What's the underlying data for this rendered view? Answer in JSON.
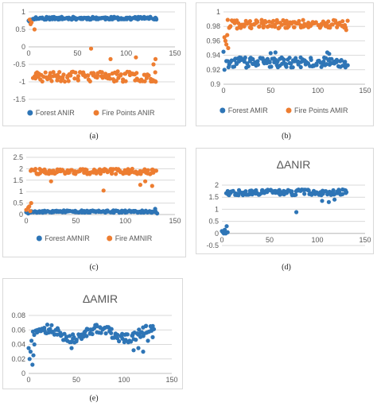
{
  "colors": {
    "blue": "#2e75b6",
    "orange": "#ed7d31",
    "grid": "#d9d9d9",
    "axis": "#bfbfbf"
  },
  "chart_data": [
    {
      "id": "a",
      "caption": "(a)",
      "type": "scatter",
      "title": "",
      "xlim": [
        0,
        150
      ],
      "xticks": [
        0,
        50,
        100,
        150
      ],
      "ylim": [
        -1.5,
        1
      ],
      "yticks": [
        -1.5,
        -1,
        -0.5,
        0,
        0.5,
        1
      ],
      "ytick_labels": [
        "-1.5",
        "-1",
        "-0.5",
        "0",
        "0.5",
        "1"
      ],
      "x_axis_at": 0,
      "grid": true,
      "legend": "bottom",
      "series": [
        {
          "name": "Forest ANIR",
          "color": "blue",
          "gen": "band",
          "center": 0.82,
          "amp": 0.04,
          "n": 130,
          "seed": 11,
          "extra": [
            [
              0,
              0.75
            ],
            [
              1,
              0.72
            ],
            [
              2,
              0.78
            ]
          ]
        },
        {
          "name": "Fire Points ANIR",
          "color": "orange",
          "gen": "band",
          "center": -0.85,
          "amp": 0.15,
          "n": 120,
          "seed": 23,
          "extra": [
            [
              1,
              0.78
            ],
            [
              2,
              0.65
            ],
            [
              3,
              0.7
            ],
            [
              6,
              0.5
            ],
            [
              7,
              -0.9
            ],
            [
              64,
              -0.05
            ],
            [
              84,
              -0.35
            ],
            [
              110,
              -0.3
            ],
            [
              130,
              -0.35
            ],
            [
              128,
              -0.5
            ]
          ]
        }
      ]
    },
    {
      "id": "b",
      "caption": "(b)",
      "type": "scatter",
      "title": "",
      "xlim": [
        0,
        150
      ],
      "xticks": [
        0,
        50,
        100,
        150
      ],
      "ylim": [
        0.9,
        1
      ],
      "yticks": [
        0.9,
        0.92,
        0.94,
        0.96,
        0.98,
        1
      ],
      "ytick_labels": [
        "0.9",
        "0.92",
        "0.94",
        "0.96",
        "0.98",
        "1"
      ],
      "x_axis_at": 0.9,
      "grid": true,
      "legend": "bottom",
      "series": [
        {
          "name": "Forest AMIR",
          "color": "blue",
          "gen": "band",
          "center": 0.93,
          "amp": 0.007,
          "n": 130,
          "seed": 37,
          "extra": [
            [
              0,
              0.945
            ],
            [
              1,
              0.92
            ],
            [
              3,
              0.932
            ],
            [
              50,
              0.943
            ],
            [
              55,
              0.944
            ],
            [
              110,
              0.944
            ],
            [
              112,
              0.942
            ]
          ]
        },
        {
          "name": "Fire Points AMIR",
          "color": "orange",
          "gen": "band",
          "center": 0.983,
          "amp": 0.006,
          "n": 125,
          "seed": 41,
          "extra": [
            [
              1,
              0.965
            ],
            [
              2,
              0.96
            ],
            [
              3,
              0.955
            ],
            [
              4,
              0.968
            ],
            [
              5,
              0.95
            ],
            [
              6,
              0.978
            ],
            [
              130,
              0.975
            ]
          ]
        }
      ]
    },
    {
      "id": "c",
      "caption": "(c)",
      "type": "scatter",
      "title": "",
      "xlim": [
        0,
        150
      ],
      "xticks": [
        0,
        50,
        100,
        150
      ],
      "ylim": [
        0,
        2.5
      ],
      "yticks": [
        0,
        0.5,
        1,
        1.5,
        2,
        2.5
      ],
      "ytick_labels": [
        "0",
        "0.5",
        "1",
        "1.5",
        "2",
        "2.5"
      ],
      "x_axis_at": 0,
      "grid": true,
      "legend": "bottom",
      "series": [
        {
          "name": "Forest AMNIR",
          "color": "blue",
          "gen": "band",
          "center": 0.13,
          "amp": 0.05,
          "n": 130,
          "seed": 53,
          "extra": [
            [
              0,
              0.1
            ],
            [
              2,
              0.05
            ],
            [
              130,
              0.25
            ],
            [
              132,
              0.05
            ]
          ]
        },
        {
          "name": "Fire AMNIR",
          "color": "orange",
          "gen": "band",
          "center": 1.88,
          "amp": 0.12,
          "n": 120,
          "seed": 59,
          "extra": [
            [
              0,
              0.2
            ],
            [
              2,
              0.3
            ],
            [
              3,
              0.35
            ],
            [
              5,
              0.5
            ],
            [
              4,
              0.15
            ],
            [
              25,
              1.45
            ],
            [
              78,
              1.05
            ],
            [
              115,
              1.3
            ],
            [
              120,
              1.45
            ],
            [
              127,
              1.25
            ]
          ]
        }
      ]
    },
    {
      "id": "d",
      "caption": "(d)",
      "type": "scatter",
      "title": "ΔANIR",
      "xlim": [
        0,
        150
      ],
      "xticks": [
        0,
        50,
        100,
        150
      ],
      "ylim": [
        -0.5,
        2
      ],
      "yticks": [
        -0.5,
        0,
        0.5,
        1,
        1.5,
        2
      ],
      "ytick_labels": [
        "-0.5",
        "0",
        "0.5",
        "1",
        "1.5",
        "2"
      ],
      "x_axis_at": 0,
      "grid": true,
      "legend": "none",
      "series": [
        {
          "name": "",
          "color": "blue",
          "gen": "band",
          "center": 1.7,
          "amp": 0.12,
          "n": 125,
          "seed": 67,
          "extra": [
            [
              0,
              0.1
            ],
            [
              1,
              0.05
            ],
            [
              2,
              0.0
            ],
            [
              3,
              0.15
            ],
            [
              4,
              0.0
            ],
            [
              5,
              0.3
            ],
            [
              6,
              0.05
            ],
            [
              7,
              1.6
            ],
            [
              78,
              0.88
            ],
            [
              105,
              1.35
            ],
            [
              112,
              1.3
            ],
            [
              118,
              1.4
            ]
          ]
        }
      ]
    },
    {
      "id": "e",
      "caption": "(e)",
      "type": "scatter",
      "title": "ΔAMIR",
      "xlim": [
        0,
        150
      ],
      "xticks": [
        0,
        50,
        100,
        150
      ],
      "ylim": [
        0,
        0.08
      ],
      "yticks": [
        0,
        0.02,
        0.04,
        0.06,
        0.08
      ],
      "ytick_labels": [
        "0",
        "0.02",
        "0.04",
        "0.06",
        "0.08"
      ],
      "x_axis_at": 0,
      "grid": true,
      "legend": "none",
      "series": [
        {
          "name": "",
          "color": "blue",
          "gen": "wave",
          "center": 0.055,
          "amp": 0.008,
          "n": 130,
          "seed": 71,
          "extra": [
            [
              0,
              0.035
            ],
            [
              1,
              0.02
            ],
            [
              2,
              0.03
            ],
            [
              3,
              0.045
            ],
            [
              4,
              0.012
            ],
            [
              5,
              0.025
            ],
            [
              6,
              0.04
            ],
            [
              45,
              0.035
            ],
            [
              110,
              0.032
            ],
            [
              115,
              0.035
            ],
            [
              120,
              0.03
            ],
            [
              125,
              0.045
            ],
            [
              130,
              0.05
            ]
          ]
        }
      ]
    }
  ]
}
